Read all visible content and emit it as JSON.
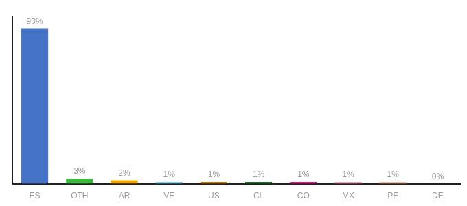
{
  "chart_data": {
    "type": "bar",
    "categories": [
      "ES",
      "OTH",
      "AR",
      "VE",
      "US",
      "CL",
      "CO",
      "MX",
      "PE",
      "DE"
    ],
    "values": [
      90,
      3,
      2,
      1,
      1,
      1,
      1,
      1,
      1,
      0
    ],
    "value_labels": [
      "90%",
      "3%",
      "2%",
      "1%",
      "1%",
      "1%",
      "1%",
      "1%",
      "1%",
      "0%"
    ],
    "colors": [
      "#4472c4",
      "#3dba3d",
      "#f0a500",
      "#7ecef4",
      "#c0710a",
      "#1a6e2e",
      "#e0157a",
      "#f4a0b0",
      "#f4b8a0",
      "#cccccc"
    ],
    "ylim": [
      0,
      97
    ],
    "yticks": [],
    "grid": false,
    "tick_labels": "x",
    "data_labels": true
  }
}
